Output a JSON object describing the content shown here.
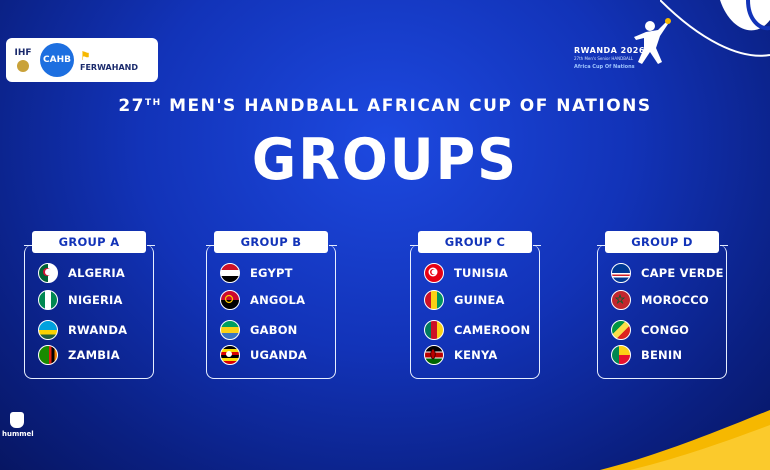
{
  "sponsors": {
    "ihf_label": "IHF",
    "caha_label": "CAHB",
    "ferwa_label": "FERWAHAND"
  },
  "event": {
    "rwanda_label": "RWANDA 2026",
    "sub_label": "27th Men's Senior HANDBALL",
    "cup_label": "Africa Cup Of Nations"
  },
  "header": {
    "number": "27",
    "ordinal": "TH",
    "subtitle": "MEN'S HANDBALL AFRICAN CUP OF NATIONS",
    "title": "GROUPS"
  },
  "groups": [
    {
      "label": "GROUP A",
      "teams": [
        "ALGERIA",
        "NIGERIA",
        "RWANDA",
        "ZAMBIA"
      ]
    },
    {
      "label": "GROUP B",
      "teams": [
        "EGYPT",
        "ANGOLA",
        "GABON",
        "UGANDA"
      ]
    },
    {
      "label": "GROUP C",
      "teams": [
        "TUNISIA",
        "GUINEA",
        "CAMEROON",
        "KENYA"
      ]
    },
    {
      "label": "GROUP D",
      "teams": [
        "CAPE VERDE",
        "MOROCCO",
        "CONGO",
        "BENIN"
      ]
    }
  ],
  "footer": {
    "brand": "hummel"
  },
  "colors": {
    "background": "#1233b8",
    "accent": "#f6b800",
    "label_text": "#1233b8"
  }
}
